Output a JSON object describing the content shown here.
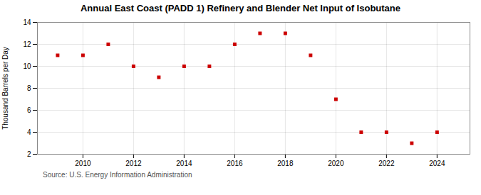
{
  "chart_data": {
    "type": "scatter",
    "title": "Annual East Coast (PADD 1) Refinery and Blender Net Input of Isobutane",
    "ylabel": "Thousand Barrels per Day",
    "source": "Source: U.S. Energy Information Administration",
    "x": [
      2009,
      2010,
      2011,
      2012,
      2013,
      2014,
      2015,
      2016,
      2017,
      2018,
      2019,
      2020,
      2021,
      2022,
      2023,
      2024
    ],
    "values": [
      11,
      11,
      12,
      10,
      9,
      10,
      10,
      12,
      13,
      13,
      11,
      7,
      4,
      4,
      3,
      4
    ],
    "color": "#cc0000",
    "marker": "square",
    "xlim": [
      2008.2,
      2025.3
    ],
    "xticks": [
      2010,
      2012,
      2014,
      2016,
      2018,
      2020,
      2022,
      2024
    ],
    "ylim": [
      2,
      14
    ],
    "yticks": [
      2,
      4,
      6,
      8,
      10,
      12,
      14
    ],
    "grid": true
  }
}
